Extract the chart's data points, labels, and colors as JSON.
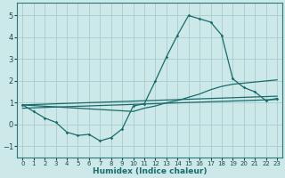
{
  "xlabel": "Humidex (Indice chaleur)",
  "bg_color": "#cce8e8",
  "grid_color": "#aacccc",
  "line_color": "#1a6b6b",
  "xlim": [
    -0.5,
    23.5
  ],
  "ylim": [
    -1.5,
    5.6
  ],
  "yticks": [
    -1,
    0,
    1,
    2,
    3,
    4,
    5
  ],
  "xticks": [
    0,
    1,
    2,
    3,
    4,
    5,
    6,
    7,
    8,
    9,
    10,
    11,
    12,
    13,
    14,
    15,
    16,
    17,
    18,
    19,
    20,
    21,
    22,
    23
  ],
  "line1_x": [
    0,
    1,
    2,
    3,
    4,
    5,
    6,
    7,
    8,
    9,
    10,
    11,
    12,
    13,
    14,
    15,
    16,
    17,
    18,
    19,
    20,
    21,
    22,
    23
  ],
  "line1_y": [
    0.9,
    0.6,
    0.3,
    0.1,
    -0.35,
    -0.5,
    -0.45,
    -0.75,
    -0.6,
    -0.2,
    0.85,
    0.95,
    2.0,
    3.1,
    4.1,
    5.0,
    4.85,
    4.7,
    4.1,
    2.1,
    1.7,
    1.5,
    1.1,
    1.2
  ],
  "line2_x": [
    0,
    23
  ],
  "line2_y": [
    0.9,
    1.3
  ],
  "line3_x": [
    0,
    23
  ],
  "line3_y": [
    0.75,
    1.15
  ],
  "line4_x": [
    0,
    10,
    11,
    12,
    13,
    14,
    15,
    16,
    17,
    18,
    19,
    20,
    21,
    22,
    23
  ],
  "line4_y": [
    0.9,
    0.6,
    0.75,
    0.85,
    1.0,
    1.1,
    1.25,
    1.4,
    1.6,
    1.75,
    1.85,
    1.9,
    1.95,
    2.0,
    2.05
  ]
}
